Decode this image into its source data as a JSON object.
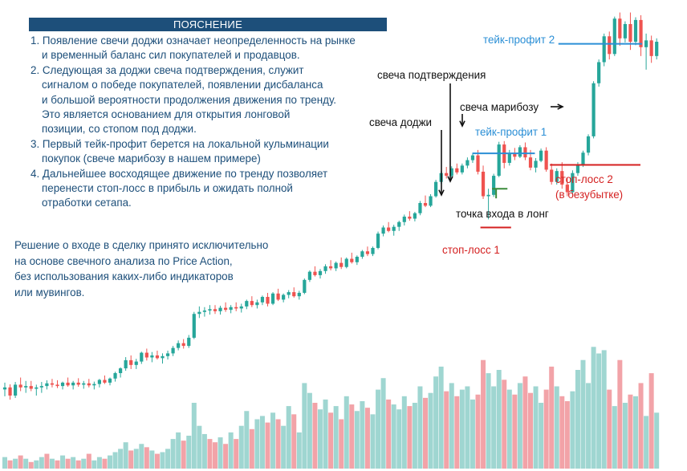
{
  "panel": {
    "title": "ПОЯСНЕНИЕ",
    "items": [
      {
        "lines": [
          "1. Появление свечи доджи означает неопределенность на рынке",
          "и временный баланс сил покупателей и продавцов."
        ]
      },
      {
        "lines": [
          "2. Следующая за доджи свеча подтверждения, служит",
          "сигналом о победе покупателей, появлении дисбаланса",
          "и большой вероятности продолжения движения по тренду.",
          "Это является основанием для открытия лонговой",
          "позиции, со стопом под доджи."
        ]
      },
      {
        "lines": [
          "3. Первый тейк-профит берется на локальной кульминации",
          "покупок (свече марибозу в нашем примере)"
        ]
      },
      {
        "lines": [
          "4. Дальнейшее восходящее движение по тренду позволяет",
          "перенести стоп-лосс в прибыль и ожидать полной",
          "отработки сетапа."
        ]
      }
    ]
  },
  "conclusion": {
    "lines": [
      "Решение о входе в сделку принято исключительно",
      "на основе свечного анализа по Price Action,",
      "без использования каких-либо индикаторов",
      "или мувингов."
    ]
  },
  "annotations": {
    "doji": "свеча доджи",
    "confirm": "свеча подтверждения",
    "marubozu": "свеча марибозу",
    "tp1": "тейк-профит 1",
    "tp2": "тейк-профит 2",
    "entry": "точка входа в лонг",
    "sl1": "стоп-лосс 1",
    "sl2_line1": "стоп-лосс 2",
    "sl2_line2": "(в безубытке)"
  },
  "colors": {
    "bull": "#26a69a",
    "bear": "#ef5350",
    "bull_volume": "#9fd6d1",
    "bear_volume": "#f2a3a8",
    "panel": "#1d4f7a",
    "take_profit": "#2b8fd6",
    "stop_loss": "#d42020",
    "entry": "#3a8a3a"
  },
  "chart_data": {
    "type": "candlestick",
    "grid": false,
    "candles": [
      {
        "o": 61.0,
        "h": 63.0,
        "l": 59.0,
        "c": 61.6
      },
      {
        "o": 61.6,
        "h": 62.5,
        "l": 58.0,
        "c": 59.2
      },
      {
        "o": 59.2,
        "h": 63.2,
        "l": 58.5,
        "c": 62.4
      },
      {
        "o": 62.4,
        "h": 64.5,
        "l": 60.5,
        "c": 61.6
      },
      {
        "o": 61.6,
        "h": 63.5,
        "l": 60.0,
        "c": 62.0
      },
      {
        "o": 62.0,
        "h": 63.5,
        "l": 60.5,
        "c": 61.2
      },
      {
        "o": 61.2,
        "h": 62.4,
        "l": 59.2,
        "c": 61.6
      },
      {
        "o": 61.6,
        "h": 63.2,
        "l": 60.0,
        "c": 62.0
      },
      {
        "o": 62.0,
        "h": 63.7,
        "l": 61.0,
        "c": 62.8
      },
      {
        "o": 62.8,
        "h": 64.1,
        "l": 61.6,
        "c": 62.4
      },
      {
        "o": 62.4,
        "h": 63.7,
        "l": 61.4,
        "c": 62.0
      },
      {
        "o": 62.0,
        "h": 63.3,
        "l": 61.0,
        "c": 63.0
      },
      {
        "o": 63.0,
        "h": 64.5,
        "l": 61.8,
        "c": 62.2
      },
      {
        "o": 62.2,
        "h": 63.5,
        "l": 61.0,
        "c": 63.0
      },
      {
        "o": 63.0,
        "h": 64.3,
        "l": 61.8,
        "c": 62.4
      },
      {
        "o": 62.4,
        "h": 63.5,
        "l": 61.2,
        "c": 62.8
      },
      {
        "o": 62.8,
        "h": 64.1,
        "l": 61.6,
        "c": 62.2
      },
      {
        "o": 62.2,
        "h": 63.3,
        "l": 61.0,
        "c": 62.6
      },
      {
        "o": 62.6,
        "h": 64.1,
        "l": 61.6,
        "c": 63.8
      },
      {
        "o": 63.8,
        "h": 65.1,
        "l": 62.6,
        "c": 63.0
      },
      {
        "o": 63.0,
        "h": 64.5,
        "l": 62.2,
        "c": 64.2
      },
      {
        "o": 64.2,
        "h": 66.2,
        "l": 63.3,
        "c": 65.8
      },
      {
        "o": 65.8,
        "h": 67.5,
        "l": 64.5,
        "c": 67.2
      },
      {
        "o": 67.2,
        "h": 70.5,
        "l": 66.5,
        "c": 69.6
      },
      {
        "o": 69.6,
        "h": 71.0,
        "l": 67.0,
        "c": 68.2
      },
      {
        "o": 68.2,
        "h": 70.0,
        "l": 67.0,
        "c": 69.2
      },
      {
        "o": 69.2,
        "h": 72.1,
        "l": 68.5,
        "c": 71.8
      },
      {
        "o": 71.8,
        "h": 73.0,
        "l": 69.5,
        "c": 70.4
      },
      {
        "o": 70.4,
        "h": 72.0,
        "l": 69.0,
        "c": 71.0
      },
      {
        "o": 71.0,
        "h": 72.4,
        "l": 69.8,
        "c": 70.2
      },
      {
        "o": 70.2,
        "h": 71.6,
        "l": 68.6,
        "c": 70.8
      },
      {
        "o": 70.8,
        "h": 72.4,
        "l": 69.8,
        "c": 71.6
      },
      {
        "o": 71.6,
        "h": 73.8,
        "l": 70.8,
        "c": 73.2
      },
      {
        "o": 73.2,
        "h": 75.4,
        "l": 72.5,
        "c": 74.6
      },
      {
        "o": 74.6,
        "h": 75.8,
        "l": 73.0,
        "c": 73.8
      },
      {
        "o": 73.8,
        "h": 77.0,
        "l": 73.2,
        "c": 76.2
      },
      {
        "o": 76.2,
        "h": 83.8,
        "l": 75.8,
        "c": 83.2
      },
      {
        "o": 83.2,
        "h": 85.4,
        "l": 82.0,
        "c": 83.8
      },
      {
        "o": 83.8,
        "h": 85.2,
        "l": 82.4,
        "c": 84.2
      },
      {
        "o": 84.2,
        "h": 85.8,
        "l": 83.0,
        "c": 84.6
      },
      {
        "o": 84.6,
        "h": 85.8,
        "l": 83.2,
        "c": 84.0
      },
      {
        "o": 84.0,
        "h": 85.6,
        "l": 83.0,
        "c": 85.0
      },
      {
        "o": 85.0,
        "h": 86.6,
        "l": 83.8,
        "c": 84.4
      },
      {
        "o": 84.4,
        "h": 85.8,
        "l": 83.4,
        "c": 85.2
      },
      {
        "o": 85.2,
        "h": 86.6,
        "l": 84.0,
        "c": 84.8
      },
      {
        "o": 84.8,
        "h": 86.2,
        "l": 83.6,
        "c": 85.4
      },
      {
        "o": 85.4,
        "h": 87.4,
        "l": 84.6,
        "c": 87.0
      },
      {
        "o": 87.0,
        "h": 88.4,
        "l": 85.2,
        "c": 85.8
      },
      {
        "o": 85.8,
        "h": 87.4,
        "l": 84.8,
        "c": 86.6
      },
      {
        "o": 86.6,
        "h": 88.6,
        "l": 85.8,
        "c": 88.2
      },
      {
        "o": 88.2,
        "h": 89.4,
        "l": 85.4,
        "c": 86.2
      },
      {
        "o": 86.2,
        "h": 89.6,
        "l": 85.8,
        "c": 89.2
      },
      {
        "o": 89.2,
        "h": 90.6,
        "l": 87.0,
        "c": 87.4
      },
      {
        "o": 87.4,
        "h": 89.2,
        "l": 86.6,
        "c": 88.8
      },
      {
        "o": 88.8,
        "h": 90.2,
        "l": 87.8,
        "c": 89.6
      },
      {
        "o": 89.6,
        "h": 91.0,
        "l": 88.0,
        "c": 88.4
      },
      {
        "o": 88.4,
        "h": 90.0,
        "l": 87.4,
        "c": 89.4
      },
      {
        "o": 89.4,
        "h": 93.6,
        "l": 89.0,
        "c": 93.2
      },
      {
        "o": 93.2,
        "h": 96.0,
        "l": 92.6,
        "c": 95.6
      },
      {
        "o": 95.6,
        "h": 97.2,
        "l": 94.2,
        "c": 94.6
      },
      {
        "o": 94.6,
        "h": 96.4,
        "l": 93.6,
        "c": 95.8
      },
      {
        "o": 95.8,
        "h": 97.8,
        "l": 95.0,
        "c": 97.2
      },
      {
        "o": 97.2,
        "h": 99.0,
        "l": 96.0,
        "c": 96.6
      },
      {
        "o": 96.6,
        "h": 98.6,
        "l": 95.8,
        "c": 98.2
      },
      {
        "o": 98.2,
        "h": 99.8,
        "l": 96.4,
        "c": 97.0
      },
      {
        "o": 97.0,
        "h": 99.8,
        "l": 96.6,
        "c": 99.4
      },
      {
        "o": 99.4,
        "h": 101.2,
        "l": 98.0,
        "c": 98.4
      },
      {
        "o": 98.4,
        "h": 100.4,
        "l": 97.6,
        "c": 100.0
      },
      {
        "o": 100.0,
        "h": 102.0,
        "l": 99.4,
        "c": 101.6
      },
      {
        "o": 101.6,
        "h": 103.0,
        "l": 100.2,
        "c": 100.8
      },
      {
        "o": 100.8,
        "h": 103.0,
        "l": 100.2,
        "c": 102.6
      },
      {
        "o": 102.6,
        "h": 107.4,
        "l": 102.2,
        "c": 106.8
      },
      {
        "o": 106.8,
        "h": 109.2,
        "l": 106.0,
        "c": 108.6
      },
      {
        "o": 108.6,
        "h": 110.2,
        "l": 107.2,
        "c": 107.6
      },
      {
        "o": 107.6,
        "h": 109.4,
        "l": 106.2,
        "c": 108.8
      },
      {
        "o": 108.8,
        "h": 110.6,
        "l": 107.6,
        "c": 110.2
      },
      {
        "o": 110.2,
        "h": 112.4,
        "l": 109.2,
        "c": 111.8
      },
      {
        "o": 111.8,
        "h": 113.4,
        "l": 110.6,
        "c": 111.2
      },
      {
        "o": 111.2,
        "h": 113.2,
        "l": 110.4,
        "c": 112.8
      },
      {
        "o": 112.8,
        "h": 116.4,
        "l": 112.2,
        "c": 115.8
      },
      {
        "o": 115.8,
        "h": 118.0,
        "l": 114.6,
        "c": 115.0
      },
      {
        "o": 115.0,
        "h": 118.4,
        "l": 114.6,
        "c": 117.8
      },
      {
        "o": 117.8,
        "h": 122.6,
        "l": 117.4,
        "c": 122.0
      },
      {
        "o": 122.0,
        "h": 125.2,
        "l": 121.4,
        "c": 124.6
      },
      {
        "o": 124.6,
        "h": 126.4,
        "l": 123.0,
        "c": 123.8
      },
      {
        "o": 123.8,
        "h": 126.6,
        "l": 123.2,
        "c": 126.0
      },
      {
        "o": 126.0,
        "h": 127.4,
        "l": 124.2,
        "c": 124.8
      },
      {
        "o": 124.8,
        "h": 127.4,
        "l": 124.2,
        "c": 126.8
      },
      {
        "o": 126.8,
        "h": 129.2,
        "l": 126.0,
        "c": 128.4
      },
      {
        "o": 128.4,
        "h": 130.4,
        "l": 127.6,
        "c": 129.8
      },
      {
        "o": 129.8,
        "h": 131.4,
        "l": 124.2,
        "c": 125.0
      },
      {
        "o": 125.0,
        "h": 126.8,
        "l": 117.0,
        "c": 117.8
      },
      {
        "o": 117.8,
        "h": 120.0,
        "l": 111.0,
        "c": 118.2
      },
      {
        "o": 118.2,
        "h": 124.4,
        "l": 117.6,
        "c": 123.8
      },
      {
        "o": 123.8,
        "h": 133.8,
        "l": 123.4,
        "c": 133.0
      },
      {
        "o": 133.0,
        "h": 134.0,
        "l": 126.0,
        "c": 127.6
      },
      {
        "o": 127.6,
        "h": 131.4,
        "l": 126.8,
        "c": 130.4
      },
      {
        "o": 130.4,
        "h": 132.0,
        "l": 128.4,
        "c": 129.4
      },
      {
        "o": 129.4,
        "h": 132.8,
        "l": 129.0,
        "c": 132.2
      },
      {
        "o": 132.2,
        "h": 133.6,
        "l": 128.4,
        "c": 129.2
      },
      {
        "o": 129.2,
        "h": 131.4,
        "l": 125.4,
        "c": 126.2
      },
      {
        "o": 126.2,
        "h": 129.0,
        "l": 124.8,
        "c": 128.2
      },
      {
        "o": 128.2,
        "h": 131.8,
        "l": 127.8,
        "c": 131.2
      },
      {
        "o": 131.2,
        "h": 132.2,
        "l": 125.0,
        "c": 125.6
      },
      {
        "o": 125.6,
        "h": 127.4,
        "l": 121.2,
        "c": 122.0
      },
      {
        "o": 122.0,
        "h": 126.0,
        "l": 121.2,
        "c": 125.2
      },
      {
        "o": 125.2,
        "h": 127.8,
        "l": 120.0,
        "c": 121.2
      },
      {
        "o": 121.2,
        "h": 123.2,
        "l": 117.8,
        "c": 119.0
      },
      {
        "o": 119.0,
        "h": 125.4,
        "l": 118.4,
        "c": 124.6
      },
      {
        "o": 124.6,
        "h": 127.8,
        "l": 123.8,
        "c": 127.0
      },
      {
        "o": 127.0,
        "h": 131.2,
        "l": 126.4,
        "c": 130.6
      },
      {
        "o": 130.6,
        "h": 136.0,
        "l": 129.8,
        "c": 135.4
      },
      {
        "o": 135.4,
        "h": 151.6,
        "l": 134.8,
        "c": 151.0
      },
      {
        "o": 151.0,
        "h": 158.0,
        "l": 150.0,
        "c": 157.2
      },
      {
        "o": 157.2,
        "h": 165.6,
        "l": 156.0,
        "c": 164.8
      },
      {
        "o": 164.8,
        "h": 166.2,
        "l": 158.0,
        "c": 159.6
      },
      {
        "o": 159.6,
        "h": 170.6,
        "l": 159.0,
        "c": 170.0
      },
      {
        "o": 170.0,
        "h": 171.8,
        "l": 162.0,
        "c": 164.2
      },
      {
        "o": 164.2,
        "h": 169.2,
        "l": 163.0,
        "c": 168.4
      },
      {
        "o": 168.4,
        "h": 171.8,
        "l": 160.8,
        "c": 163.2
      },
      {
        "o": 163.2,
        "h": 170.4,
        "l": 162.2,
        "c": 169.6
      },
      {
        "o": 169.6,
        "h": 171.0,
        "l": 159.0,
        "c": 161.6
      },
      {
        "o": 161.6,
        "h": 165.6,
        "l": 155.0,
        "c": 163.6
      },
      {
        "o": 163.6,
        "h": 165.0,
        "l": 157.0,
        "c": 159.0
      },
      {
        "o": 159.0,
        "h": 164.2,
        "l": 158.0,
        "c": 163.2
      }
    ],
    "volumes": [
      [
        7,
        "bull"
      ],
      [
        5,
        "bear"
      ],
      [
        6,
        "bull"
      ],
      [
        8,
        "bear"
      ],
      [
        6,
        "bull"
      ],
      [
        4,
        "bear"
      ],
      [
        5,
        "bull"
      ],
      [
        7,
        "bull"
      ],
      [
        9,
        "bear"
      ],
      [
        6,
        "bull"
      ],
      [
        5,
        "bear"
      ],
      [
        8,
        "bull"
      ],
      [
        6,
        "bear"
      ],
      [
        7,
        "bull"
      ],
      [
        5,
        "bear"
      ],
      [
        6,
        "bull"
      ],
      [
        9,
        "bear"
      ],
      [
        5,
        "bull"
      ],
      [
        7,
        "bull"
      ],
      [
        6,
        "bear"
      ],
      [
        8,
        "bull"
      ],
      [
        10,
        "bull"
      ],
      [
        12,
        "bull"
      ],
      [
        16,
        "bull"
      ],
      [
        11,
        "bear"
      ],
      [
        12,
        "bull"
      ],
      [
        15,
        "bull"
      ],
      [
        13,
        "bear"
      ],
      [
        11,
        "bull"
      ],
      [
        9,
        "bear"
      ],
      [
        10,
        "bull"
      ],
      [
        12,
        "bull"
      ],
      [
        18,
        "bull"
      ],
      [
        22,
        "bull"
      ],
      [
        17,
        "bear"
      ],
      [
        20,
        "bull"
      ],
      [
        40,
        "bull"
      ],
      [
        26,
        "bull"
      ],
      [
        21,
        "bull"
      ],
      [
        18,
        "bear"
      ],
      [
        16,
        "bear"
      ],
      [
        19,
        "bull"
      ],
      [
        15,
        "bear"
      ],
      [
        22,
        "bull"
      ],
      [
        18,
        "bear"
      ],
      [
        26,
        "bull"
      ],
      [
        35,
        "bull"
      ],
      [
        24,
        "bear"
      ],
      [
        30,
        "bull"
      ],
      [
        32,
        "bull"
      ],
      [
        28,
        "bear"
      ],
      [
        34,
        "bull"
      ],
      [
        30,
        "bear"
      ],
      [
        26,
        "bull"
      ],
      [
        38,
        "bull"
      ],
      [
        33,
        "bear"
      ],
      [
        22,
        "bull"
      ],
      [
        52,
        "bull"
      ],
      [
        46,
        "bull"
      ],
      [
        40,
        "bear"
      ],
      [
        36,
        "bull"
      ],
      [
        42,
        "bull"
      ],
      [
        34,
        "bear"
      ],
      [
        38,
        "bull"
      ],
      [
        30,
        "bear"
      ],
      [
        44,
        "bull"
      ],
      [
        39,
        "bear"
      ],
      [
        35,
        "bull"
      ],
      [
        41,
        "bull"
      ],
      [
        37,
        "bear"
      ],
      [
        33,
        "bull"
      ],
      [
        48,
        "bull"
      ],
      [
        55,
        "bull"
      ],
      [
        42,
        "bear"
      ],
      [
        39,
        "bull"
      ],
      [
        36,
        "bull"
      ],
      [
        44,
        "bull"
      ],
      [
        38,
        "bear"
      ],
      [
        40,
        "bull"
      ],
      [
        50,
        "bull"
      ],
      [
        43,
        "bear"
      ],
      [
        46,
        "bull"
      ],
      [
        56,
        "bull"
      ],
      [
        62,
        "bull"
      ],
      [
        47,
        "bear"
      ],
      [
        52,
        "bull"
      ],
      [
        44,
        "bear"
      ],
      [
        48,
        "bull"
      ],
      [
        50,
        "bull"
      ],
      [
        42,
        "bull"
      ],
      [
        45,
        "bear"
      ],
      [
        66,
        "bear"
      ],
      [
        58,
        "bull"
      ],
      [
        50,
        "bull"
      ],
      [
        60,
        "bull"
      ],
      [
        54,
        "bear"
      ],
      [
        48,
        "bull"
      ],
      [
        45,
        "bear"
      ],
      [
        52,
        "bull"
      ],
      [
        56,
        "bear"
      ],
      [
        46,
        "bear"
      ],
      [
        50,
        "bull"
      ],
      [
        40,
        "bull"
      ],
      [
        48,
        "bear"
      ],
      [
        62,
        "bear"
      ],
      [
        50,
        "bull"
      ],
      [
        44,
        "bear"
      ],
      [
        41,
        "bear"
      ],
      [
        47,
        "bull"
      ],
      [
        60,
        "bull"
      ],
      [
        66,
        "bull"
      ],
      [
        52,
        "bull"
      ],
      [
        74,
        "bull"
      ],
      [
        70,
        "bull"
      ],
      [
        72,
        "bull"
      ],
      [
        48,
        "bear"
      ],
      [
        38,
        "bull"
      ],
      [
        66,
        "bear"
      ],
      [
        40,
        "bull"
      ],
      [
        45,
        "bear"
      ],
      [
        44,
        "bull"
      ],
      [
        52,
        "bear"
      ],
      [
        32,
        "bull"
      ],
      [
        58,
        "bear"
      ],
      [
        34,
        "bull"
      ]
    ],
    "price_levels": {
      "take_profit_1": 130.4,
      "take_profit_2": 162.6,
      "stop_loss_1": 108.6,
      "stop_loss_2": 127.0,
      "entry": 120.0
    },
    "marked_candles": {
      "doji": 92,
      "confirmation": 93,
      "marubozu": 119
    }
  }
}
